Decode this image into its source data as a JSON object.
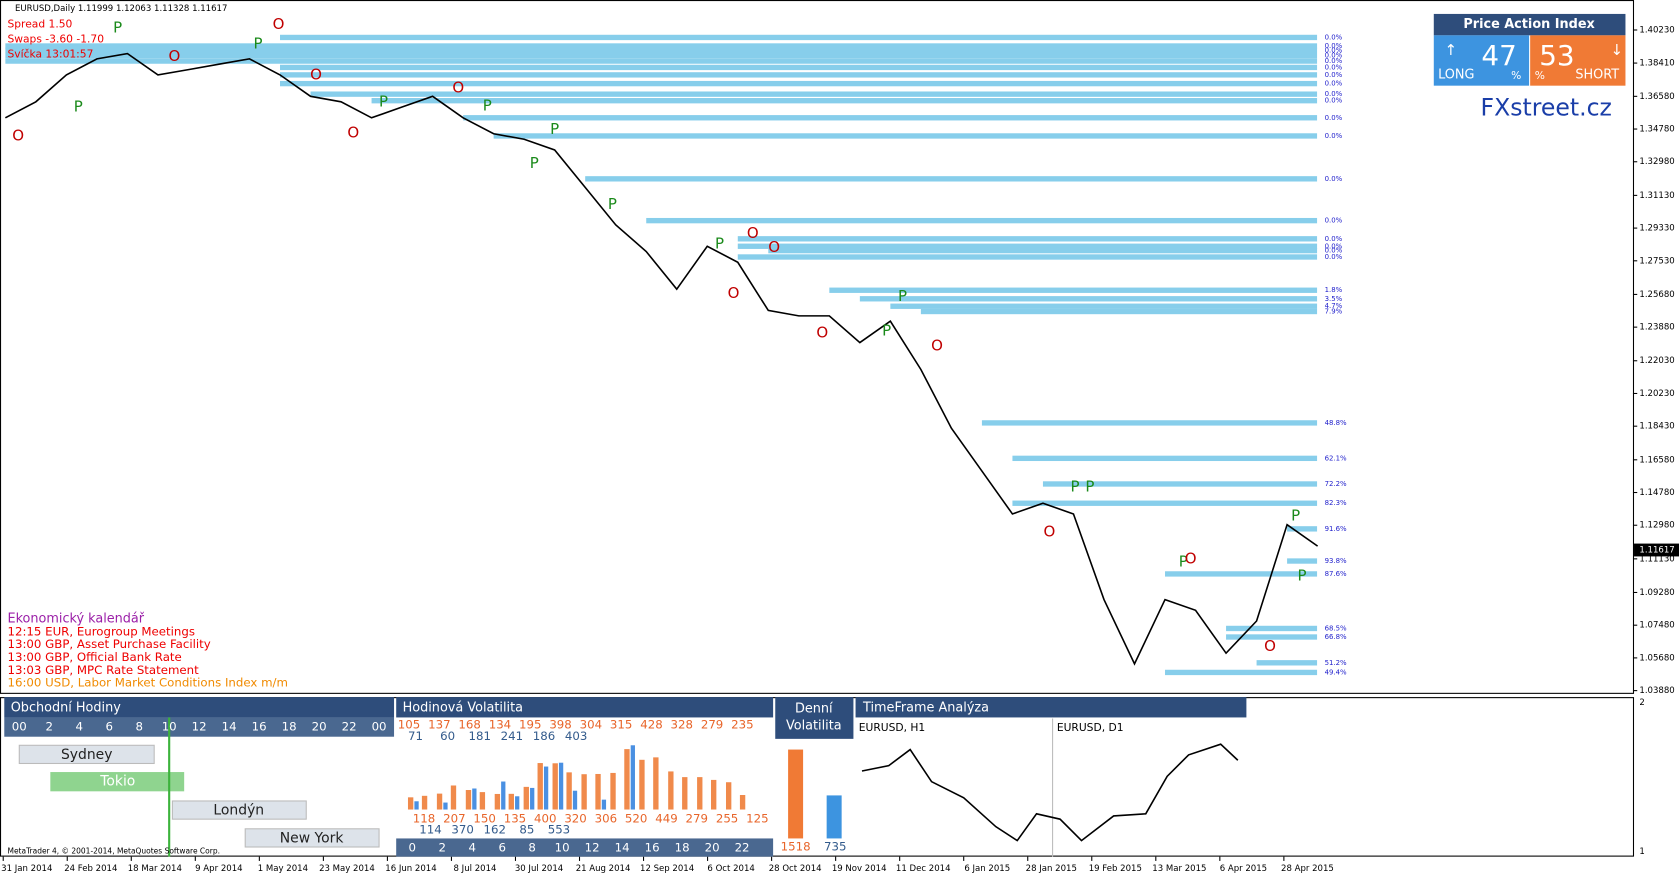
{
  "header": {
    "symbol_line": "EURUSD,Daily  1.11999 1.12063 1.11328 1.11617",
    "spread": "Spread  1.50",
    "swaps": "Swaps  -3.60 -1.70",
    "candle": "Svíčka  13:01:57",
    "copyright": "MetaTrader 4, © 2001-2014, MetaQuotes Software Corp."
  },
  "price_action": {
    "title": "Price Action Index",
    "long_value": "47",
    "long_unit": "%",
    "long_label": "LONG",
    "short_value": "53",
    "short_unit": "%",
    "short_label": "SHORT",
    "brand": "FXstreet.cz"
  },
  "calendar": {
    "title": "Ekonomický kalendář",
    "events": [
      "12:15 EUR, Eurogroup Meetings",
      "13:00 GBP, Asset Purchase Facility",
      "13:00 GBP, Official Bank Rate",
      "13:03 GBP, MPC Rate Statement",
      "16:00 USD, Labor Market Conditions Index m/m"
    ]
  },
  "chart_data": {
    "type": "line",
    "color": "#000000",
    "x_labels": [
      "31 Jan 2014",
      "24 Feb 2014",
      "18 Mar 2014",
      "9 Apr 2014",
      "1 May 2014",
      "23 May 2014",
      "16 Jun 2014",
      "8 Jul 2014",
      "30 Jul 2014",
      "21 Aug 2014",
      "12 Sep 2014",
      "6 Oct 2014",
      "28 Oct 2014",
      "19 Nov 2014",
      "11 Dec 2014",
      "6 Jan 2015",
      "28 Jan 2015",
      "19 Feb 2015",
      "13 Mar 2015",
      "6 Apr 2015",
      "28 Apr 2015"
    ],
    "values": [
      1.354,
      1.3628,
      1.3776,
      1.3864,
      1.3893,
      1.3776,
      1.3805,
      1.3835,
      1.3864,
      1.3776,
      1.3658,
      1.3628,
      1.354,
      1.3599,
      1.3658,
      1.354,
      1.3452,
      1.3422,
      1.3363,
      1.3157,
      1.2951,
      1.2804,
      1.2597,
      1.2833,
      1.2745,
      1.248,
      1.245,
      1.245,
      1.2303,
      1.2421,
      1.2155,
      1.1832,
      1.1596,
      1.136,
      1.1419,
      1.136,
      1.0889,
      1.0535,
      1.0889,
      1.083,
      1.0594,
      1.0771,
      1.1301,
      1.1183
    ],
    "ylim": [
      1.037,
      1.4188
    ],
    "yticks": [
      {
        "value": 1.4023,
        "label": "1.40230"
      },
      {
        "value": 1.3841,
        "label": "1.38410"
      },
      {
        "value": 1.3658,
        "label": "1.36580"
      },
      {
        "value": 1.3478,
        "label": "1.34780"
      },
      {
        "value": 1.3298,
        "label": "1.32980"
      },
      {
        "value": 1.3113,
        "label": "1.31130"
      },
      {
        "value": 1.2933,
        "label": "1.29330"
      },
      {
        "value": 1.2753,
        "label": "1.27530"
      },
      {
        "value": 1.2568,
        "label": "1.25680"
      },
      {
        "value": 1.2388,
        "label": "1.23880"
      },
      {
        "value": 1.2203,
        "label": "1.22030"
      },
      {
        "value": 1.2023,
        "label": "1.20230"
      },
      {
        "value": 1.1843,
        "label": "1.18430"
      },
      {
        "value": 1.1658,
        "label": "1.16580"
      },
      {
        "value": 1.1478,
        "label": "1.14780"
      },
      {
        "value": 1.1298,
        "label": "1.12980"
      },
      {
        "value": 1.1113,
        "label": "1.11130"
      },
      {
        "value": 1.0928,
        "label": "1.09280"
      },
      {
        "value": 1.0748,
        "label": "1.07480"
      },
      {
        "value": 1.0568,
        "label": "1.05680"
      },
      {
        "value": 1.0388,
        "label": "1.03880"
      }
    ],
    "current_price": {
      "value": 1.11617,
      "label": "1.11617"
    },
    "level_color": "#87ceeb",
    "levels": [
      {
        "value": 1.3982,
        "label": "0.0%",
        "start": 9
      },
      {
        "value": 1.3935,
        "label": "0.0%",
        "start": 0
      },
      {
        "value": 1.3911,
        "label": "0.0%",
        "start": 0
      },
      {
        "value": 1.3882,
        "label": "0.0%",
        "start": 0
      },
      {
        "value": 1.3852,
        "label": "0.0%",
        "start": 0
      },
      {
        "value": 1.3817,
        "label": "0.0%",
        "start": 9
      },
      {
        "value": 1.3776,
        "label": "0.0%",
        "start": 9
      },
      {
        "value": 1.3728,
        "label": "0.0%",
        "start": 9
      },
      {
        "value": 1.367,
        "label": "0.0%",
        "start": 10
      },
      {
        "value": 1.3634,
        "label": "0.0%",
        "start": 12
      },
      {
        "value": 1.354,
        "label": "0.0%",
        "start": 15
      },
      {
        "value": 1.344,
        "label": "0.0%",
        "start": 16
      },
      {
        "value": 1.3204,
        "label": "0.0%",
        "start": 19
      },
      {
        "value": 1.2974,
        "label": "0.0%",
        "start": 21
      },
      {
        "value": 1.2874,
        "label": "0.0%",
        "start": 24
      },
      {
        "value": 1.2833,
        "label": "0.0%",
        "start": 24
      },
      {
        "value": 1.2809,
        "label": "0.0%",
        "start": 25
      },
      {
        "value": 1.2774,
        "label": "0.0%",
        "start": 24
      },
      {
        "value": 1.2591,
        "label": "1.8%",
        "start": 27
      },
      {
        "value": 1.2544,
        "label": "3.5%",
        "start": 28
      },
      {
        "value": 1.2503,
        "label": "4.7%",
        "start": 29
      },
      {
        "value": 1.2474,
        "label": "7.9%",
        "start": 30
      },
      {
        "value": 1.1861,
        "label": "48.8%",
        "start": 32
      },
      {
        "value": 1.1666,
        "label": "62.1%",
        "start": 33
      },
      {
        "value": 1.1525,
        "label": "72.2%",
        "start": 34
      },
      {
        "value": 1.1419,
        "label": "82.3%",
        "start": 33
      },
      {
        "value": 1.1278,
        "label": "91.6%",
        "start": 42
      },
      {
        "value": 1.1101,
        "label": "93.8%",
        "start": 42
      },
      {
        "value": 1.103,
        "label": "87.6%",
        "start": 38
      },
      {
        "value": 1.073,
        "label": "68.5%",
        "start": 40
      },
      {
        "value": 1.0683,
        "label": "66.8%",
        "start": 40
      },
      {
        "value": 1.0541,
        "label": "51.2%",
        "start": 41
      },
      {
        "value": 1.0488,
        "label": "49.4%",
        "start": 38
      }
    ],
    "signals": [
      {
        "label": "O",
        "index": 0.42,
        "value": 1.344
      },
      {
        "label": "P",
        "index": 2.39,
        "value": 1.3599
      },
      {
        "label": "P",
        "index": 3.68,
        "value": 1.4035
      },
      {
        "label": "O",
        "index": 5.54,
        "value": 1.3876
      },
      {
        "label": "P",
        "index": 8.28,
        "value": 1.3946
      },
      {
        "label": "O",
        "index": 8.95,
        "value": 1.4052
      },
      {
        "label": "O",
        "index": 10.18,
        "value": 1.3776
      },
      {
        "label": "O",
        "index": 11.4,
        "value": 1.3457
      },
      {
        "label": "P",
        "index": 12.39,
        "value": 1.3628
      },
      {
        "label": "O",
        "index": 14.84,
        "value": 1.3705
      },
      {
        "label": "P",
        "index": 15.79,
        "value": 1.3605
      },
      {
        "label": "P",
        "index": 17.33,
        "value": 1.3287
      },
      {
        "label": "P",
        "index": 18.0,
        "value": 1.3475
      },
      {
        "label": "P",
        "index": 19.89,
        "value": 1.3063
      },
      {
        "label": "P",
        "index": 23.4,
        "value": 1.2845
      },
      {
        "label": "O",
        "index": 24.49,
        "value": 1.2904
      },
      {
        "label": "O",
        "index": 25.19,
        "value": 1.2827
      },
      {
        "label": "O",
        "index": 23.86,
        "value": 1.2574
      },
      {
        "label": "O",
        "index": 26.77,
        "value": 1.2356
      },
      {
        "label": "P",
        "index": 29.4,
        "value": 1.2556
      },
      {
        "label": "O",
        "index": 30.53,
        "value": 1.2285
      },
      {
        "label": "P",
        "index": 28.88,
        "value": 1.2368
      },
      {
        "label": "P",
        "index": 35.05,
        "value": 1.1507
      },
      {
        "label": "P",
        "index": 35.54,
        "value": 1.1507
      },
      {
        "label": "O",
        "index": 34.21,
        "value": 1.126
      },
      {
        "label": "P",
        "index": 38.6,
        "value": 1.1095
      },
      {
        "label": "O",
        "index": 38.84,
        "value": 1.1113
      },
      {
        "label": "O",
        "index": 41.44,
        "value": 1.063
      },
      {
        "label": "P",
        "index": 42.28,
        "value": 1.1348
      },
      {
        "label": "P",
        "index": 42.49,
        "value": 1.1018
      }
    ],
    "sub_ticks": [
      2,
      1
    ]
  },
  "trading_hours": {
    "title": "Obchodní Hodiny",
    "hours": [
      "00",
      "2",
      "4",
      "6",
      "8",
      "10",
      "12",
      "14",
      "16",
      "18",
      "20",
      "22",
      "00"
    ],
    "sessions": [
      "Sydney",
      "Tokio",
      "Londýn",
      "New York"
    ]
  },
  "hourly_volatility": {
    "title": "Hodinová Volatilita",
    "orange_top": [
      105,
      137,
      168,
      134,
      195,
      398,
      304,
      315,
      428,
      328,
      279,
      235
    ],
    "blue_top": [
      71,
      60,
      181,
      241,
      186,
      403
    ],
    "orange_bottom": [
      118,
      207,
      150,
      135,
      400,
      320,
      306,
      520,
      449,
      279,
      255,
      125
    ],
    "blue_bottom": [
      114,
      370,
      162,
      85,
      553
    ],
    "hours": [
      0,
      2,
      4,
      6,
      8,
      10,
      12,
      14,
      16,
      18,
      20,
      22
    ]
  },
  "daily_volatility": {
    "title_1": "Denní",
    "title_2": "Volatilita",
    "orange": 1518,
    "blue": 735
  },
  "timeframe": {
    "title": "TimeFrame Analýza",
    "left": "EURUSD, H1",
    "right": "EURUSD, D1"
  }
}
